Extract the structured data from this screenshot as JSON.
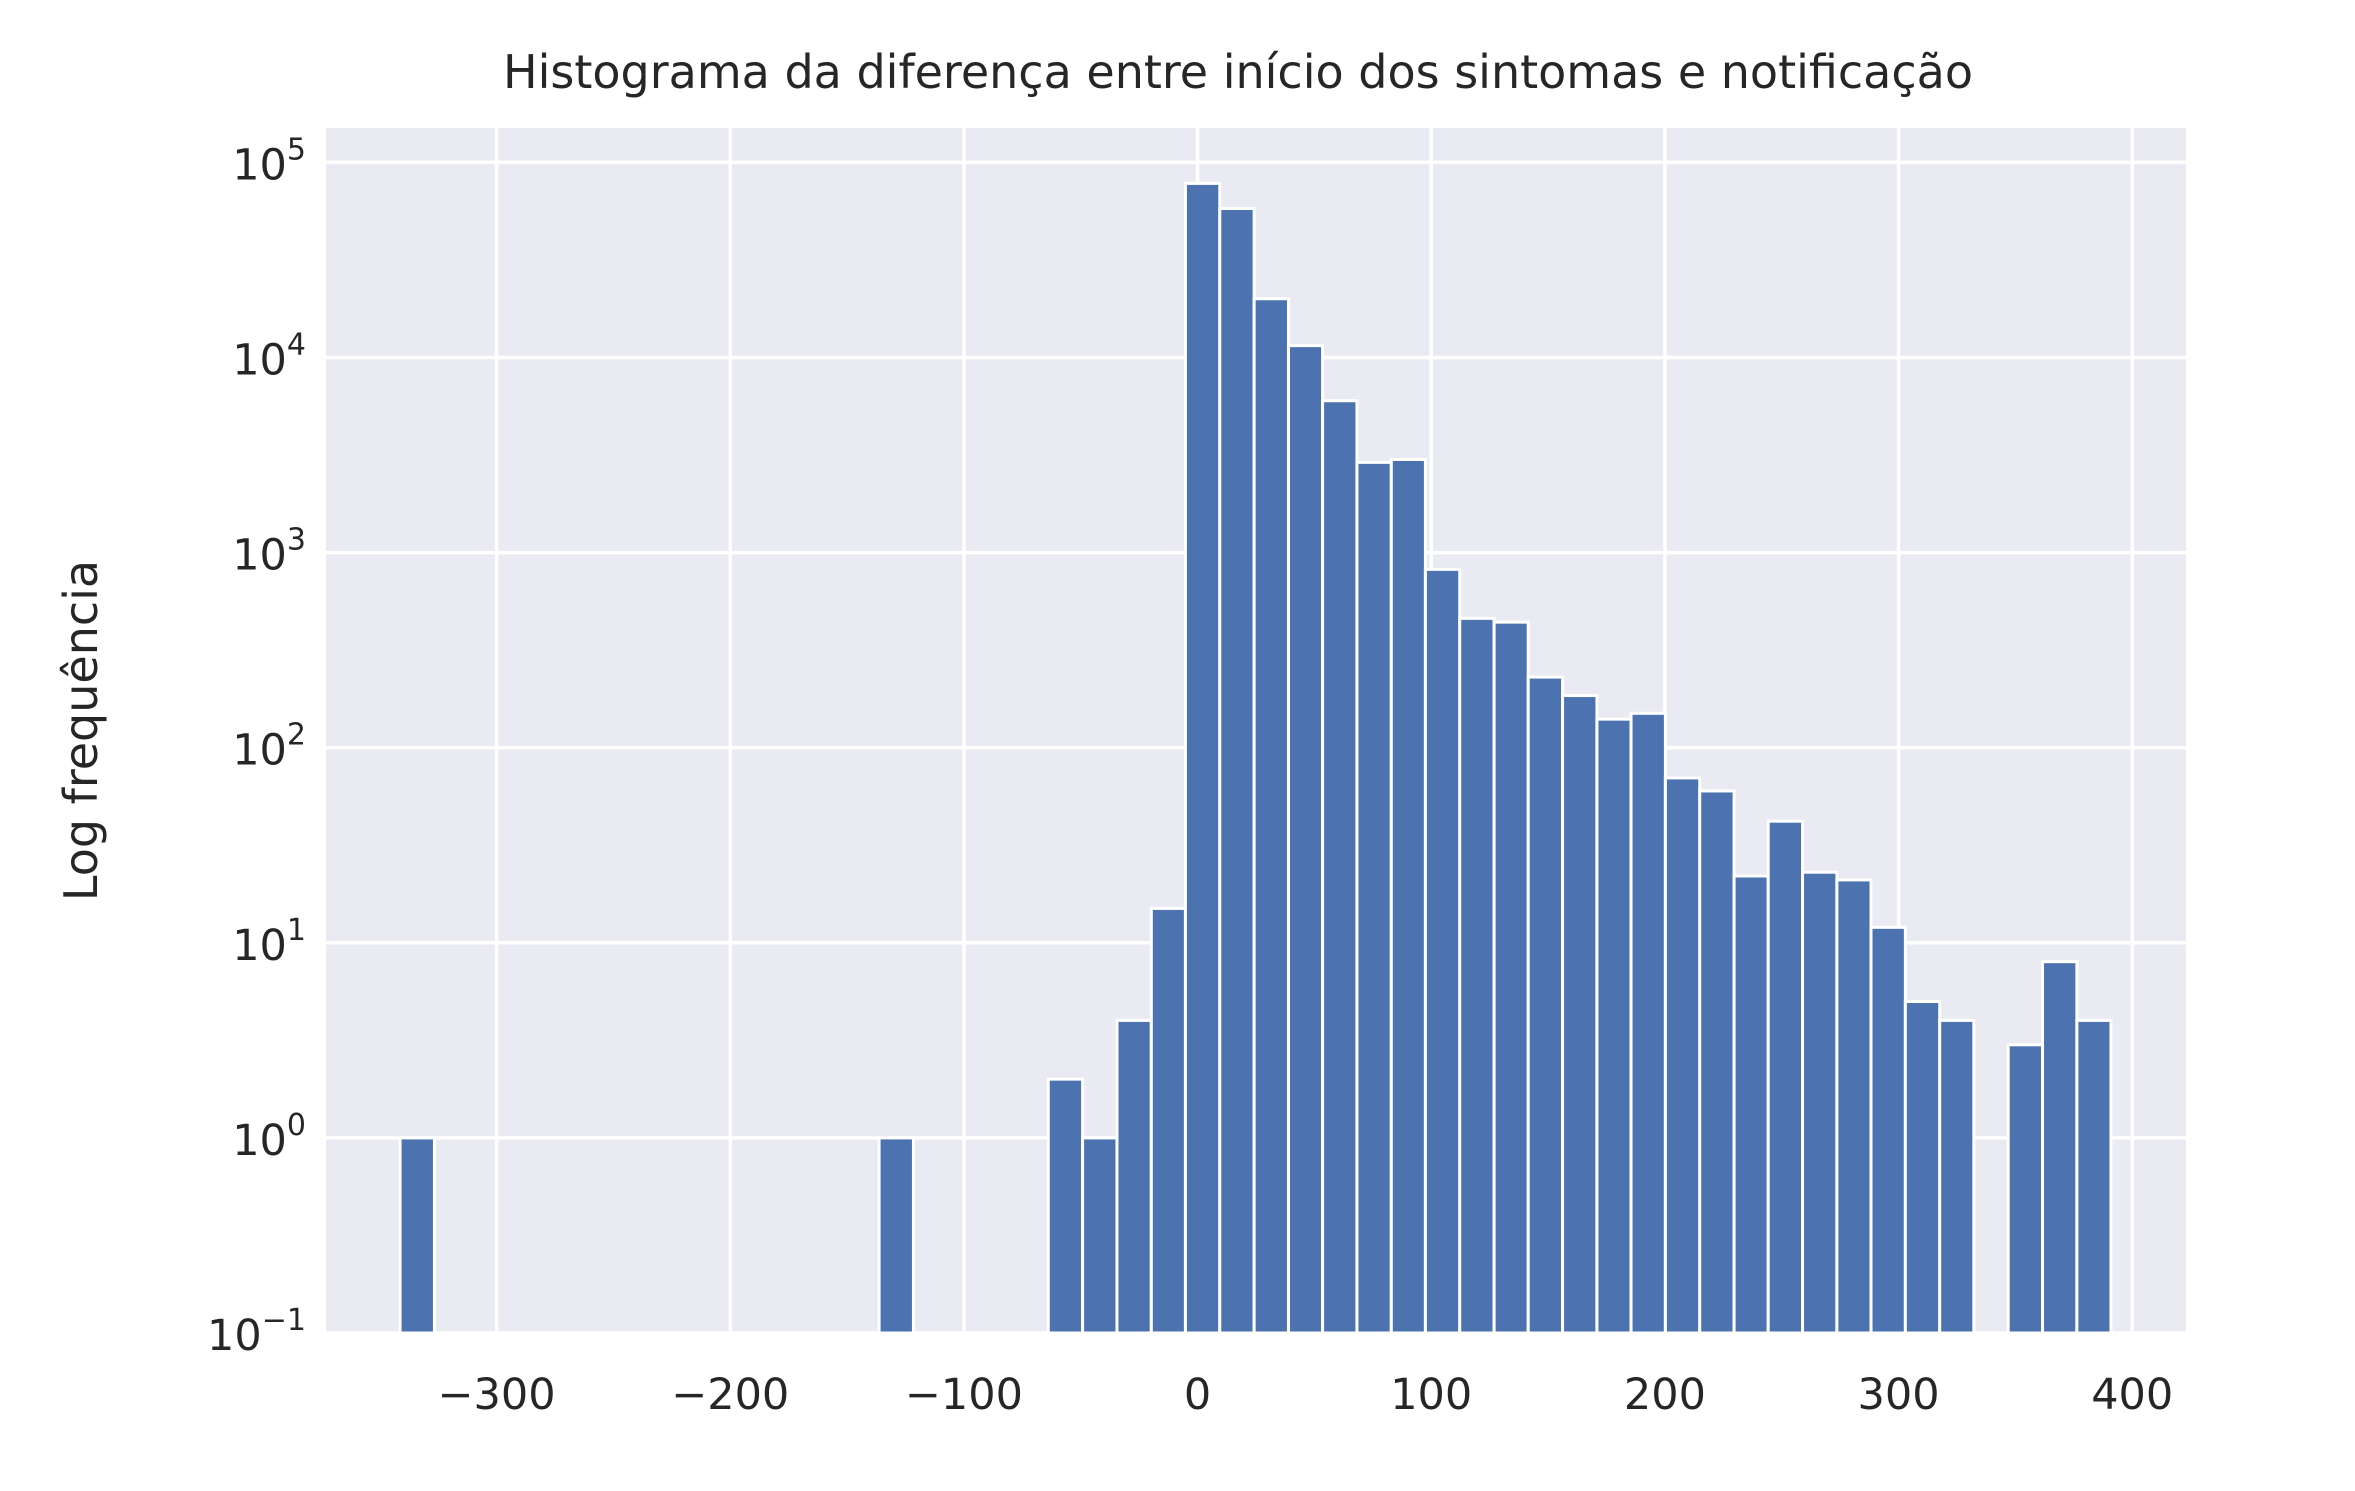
{
  "chart_data": {
    "type": "bar",
    "title": "Histograma da diferença entre início dos sintomas e notificação",
    "xlabel": "",
    "ylabel": "Log frequência",
    "xlim": [
      -373,
      423
    ],
    "ylim": [
      0.1,
      150000
    ],
    "yscale": "log",
    "grid": true,
    "legend": "none",
    "x_ticks": [
      {
        "value": -300,
        "label": "−300"
      },
      {
        "value": -200,
        "label": "−200"
      },
      {
        "value": -100,
        "label": "−100"
      },
      {
        "value": 0,
        "label": "0"
      },
      {
        "value": 100,
        "label": "100"
      },
      {
        "value": 200,
        "label": "200"
      },
      {
        "value": 300,
        "label": "300"
      },
      {
        "value": 400,
        "label": "400"
      }
    ],
    "y_ticks": [
      {
        "value": 0.1,
        "base": "10",
        "exp": "−1"
      },
      {
        "value": 1,
        "base": "10",
        "exp": "0"
      },
      {
        "value": 10,
        "base": "10",
        "exp": "1"
      },
      {
        "value": 100,
        "base": "10",
        "exp": "2"
      },
      {
        "value": 1000,
        "base": "10",
        "exp": "3"
      },
      {
        "value": 10000,
        "base": "10",
        "exp": "4"
      },
      {
        "value": 100000,
        "base": "10",
        "exp": "5"
      }
    ],
    "bins": [
      {
        "x0": -341.3,
        "x1": -326.6,
        "count": 1
      },
      {
        "x0": -136.3,
        "x1": -121.6,
        "count": 1
      },
      {
        "x0": -63.9,
        "x1": -49.2,
        "count": 2
      },
      {
        "x0": -49.2,
        "x1": -34.5,
        "count": 1
      },
      {
        "x0": -34.5,
        "x1": -19.8,
        "count": 4
      },
      {
        "x0": -19.8,
        "x1": -5.2,
        "count": 15
      },
      {
        "x0": -5.2,
        "x1": 9.5,
        "count": 78000
      },
      {
        "x0": 9.5,
        "x1": 24.2,
        "count": 58000
      },
      {
        "x0": 24.2,
        "x1": 38.9,
        "count": 20000
      },
      {
        "x0": 38.9,
        "x1": 53.5,
        "count": 11500
      },
      {
        "x0": 53.5,
        "x1": 68.2,
        "count": 6000
      },
      {
        "x0": 68.2,
        "x1": 82.9,
        "count": 2900
      },
      {
        "x0": 82.9,
        "x1": 97.5,
        "count": 3000
      },
      {
        "x0": 97.5,
        "x1": 112.2,
        "count": 820
      },
      {
        "x0": 112.2,
        "x1": 126.9,
        "count": 460
      },
      {
        "x0": 126.9,
        "x1": 141.5,
        "count": 440
      },
      {
        "x0": 141.5,
        "x1": 156.2,
        "count": 230
      },
      {
        "x0": 156.2,
        "x1": 170.9,
        "count": 185
      },
      {
        "x0": 170.9,
        "x1": 185.5,
        "count": 140
      },
      {
        "x0": 185.5,
        "x1": 200.2,
        "count": 150
      },
      {
        "x0": 200.2,
        "x1": 214.9,
        "count": 70
      },
      {
        "x0": 214.9,
        "x1": 229.6,
        "count": 60
      },
      {
        "x0": 229.6,
        "x1": 244.2,
        "count": 22
      },
      {
        "x0": 244.2,
        "x1": 258.9,
        "count": 42
      },
      {
        "x0": 258.9,
        "x1": 273.6,
        "count": 23
      },
      {
        "x0": 273.6,
        "x1": 288.2,
        "count": 21
      },
      {
        "x0": 288.2,
        "x1": 302.9,
        "count": 12
      },
      {
        "x0": 302.9,
        "x1": 317.6,
        "count": 5
      },
      {
        "x0": 317.6,
        "x1": 332.2,
        "count": 4
      },
      {
        "x0": 332.2,
        "x1": 346.9,
        "count": 0
      },
      {
        "x0": 346.9,
        "x1": 361.6,
        "count": 3
      },
      {
        "x0": 361.6,
        "x1": 376.3,
        "count": 8
      },
      {
        "x0": 376.3,
        "x1": 390.9,
        "count": 4
      }
    ],
    "colors": {
      "bar": "#4c72b0",
      "bar_edge": "#ffffff",
      "plot_background": "#eaeaf2",
      "grid": "#ffffff",
      "text": "#262626"
    }
  }
}
